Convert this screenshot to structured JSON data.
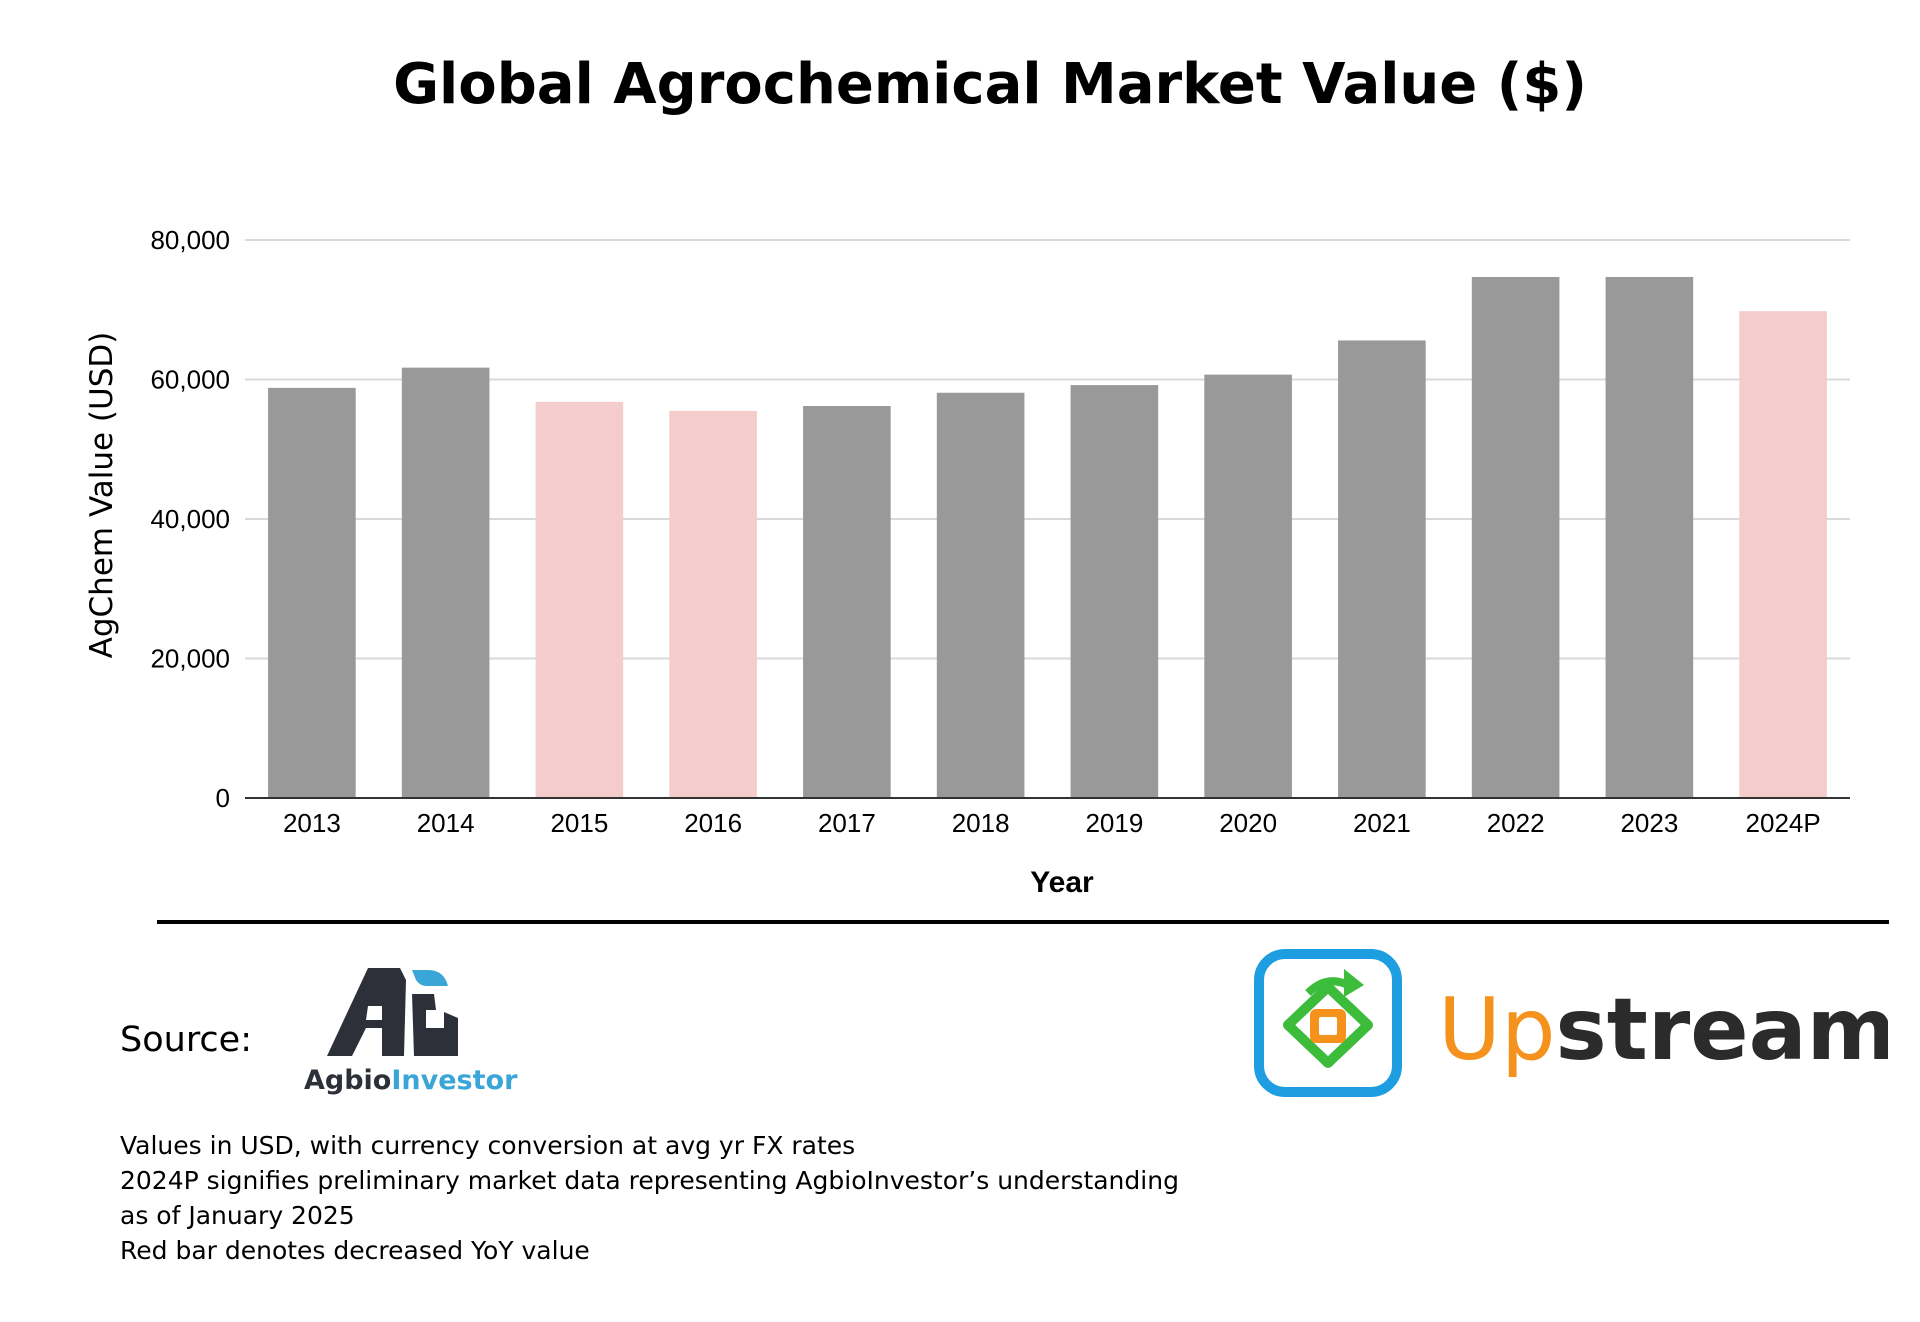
{
  "chart_data": {
    "type": "bar",
    "title": "Global Agrochemical Market Value ($)",
    "xlabel": "Year",
    "ylabel": "AgChem Value (USD)",
    "categories": [
      "2013",
      "2014",
      "2015",
      "2016",
      "2017",
      "2018",
      "2019",
      "2020",
      "2021",
      "2022",
      "2023",
      "2024P"
    ],
    "values": [
      58800,
      61700,
      56800,
      55500,
      56200,
      58100,
      59200,
      60700,
      65600,
      74700,
      74700,
      69800
    ],
    "decreased_yoy": [
      false,
      false,
      true,
      true,
      false,
      false,
      false,
      false,
      false,
      false,
      false,
      true
    ],
    "ylim": [
      0,
      80000
    ],
    "yticks": [
      0,
      20000,
      40000,
      60000,
      80000
    ],
    "ytick_labels": [
      "0",
      "20,000",
      "40,000",
      "60,000",
      "80,000"
    ],
    "grid": true,
    "colors": {
      "bar": "#999999",
      "decreased_bar": "#f4cccc",
      "grid": "#d9d9d9",
      "axis": "#333333"
    }
  },
  "footer": {
    "source_label": "Source:",
    "agbio_logo_text_dark": "Agbio",
    "agbio_logo_text_blue": "Investor",
    "upstream_logo_text_orange": "Up",
    "upstream_logo_text_dark": "stream",
    "notes": [
      "Values in USD, with currency conversion at avg yr FX rates",
      "2024P signifies preliminary market data representing AgbioInvestor’s understanding",
      "as of January 2025",
      "Red bar denotes decreased YoY value"
    ],
    "colors": {
      "agbio_dark": "#2d3039",
      "agbio_blue": "#3aa6d8",
      "upstream_orange": "#f5921e",
      "upstream_dark": "#2b2b2b",
      "upstream_icon_blue": "#1e9ee0",
      "upstream_icon_green": "#3dbb3a"
    }
  }
}
